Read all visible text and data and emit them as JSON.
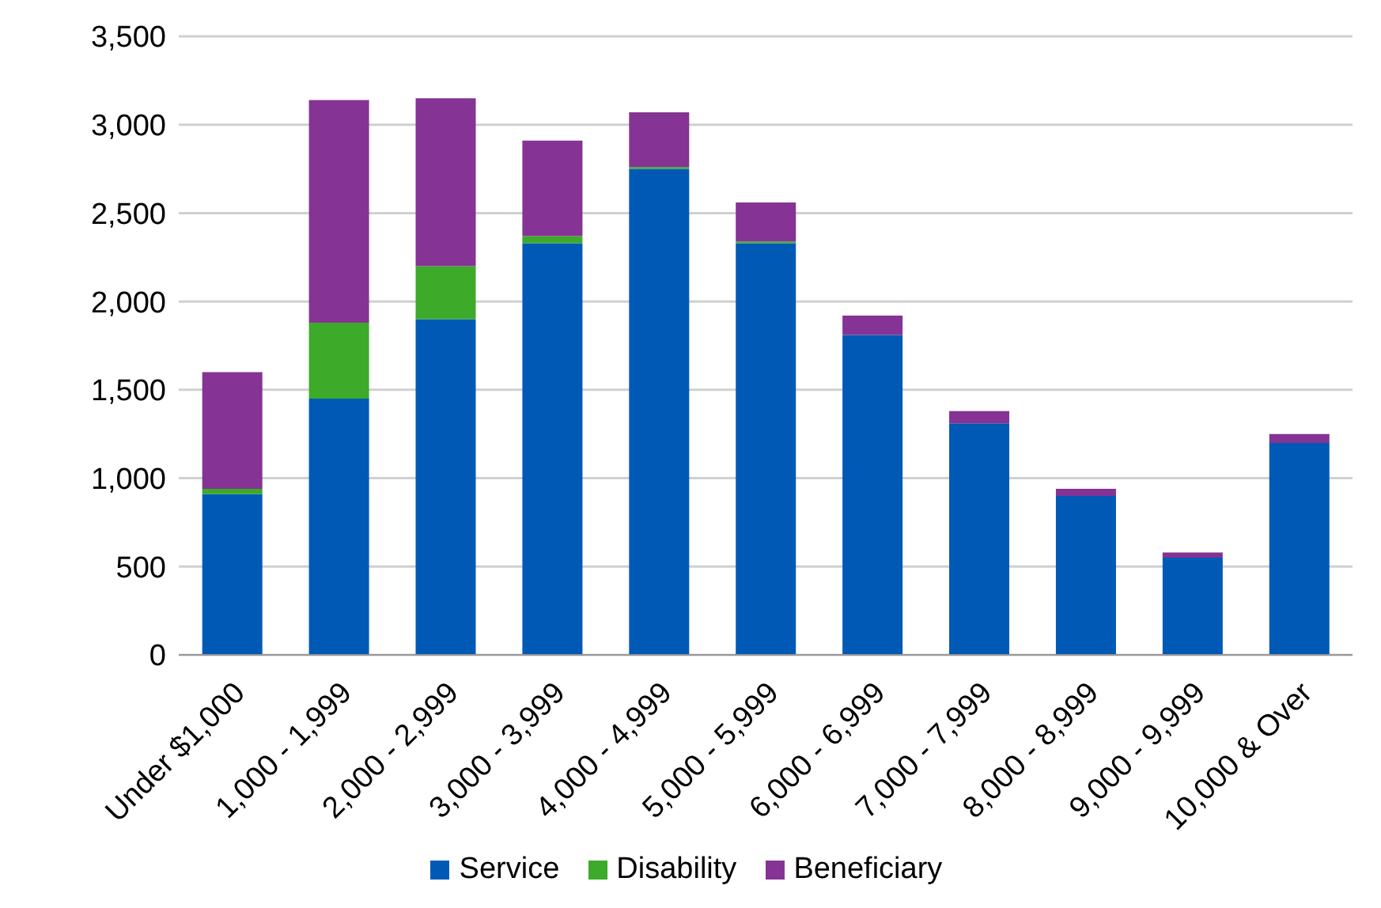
{
  "chart_data": {
    "type": "bar",
    "stacked": true,
    "categories": [
      "Under $1,000",
      "1,000 - 1,999",
      "2,000 - 2,999",
      "3,000 - 3,999",
      "4,000 - 4,999",
      "5,000 - 5,999",
      "6,000 - 6,999",
      "7,000 - 7,999",
      "8,000 - 8,999",
      "9,000 - 9,999",
      "10,000 & Over"
    ],
    "series": [
      {
        "name": "Service",
        "color": "#005ab5",
        "values": [
          910,
          1450,
          1900,
          2330,
          2750,
          2330,
          1810,
          1310,
          900,
          550,
          1200
        ]
      },
      {
        "name": "Disability",
        "color": "#3daa2a",
        "values": [
          30,
          430,
          300,
          40,
          10,
          10,
          0,
          0,
          0,
          0,
          0
        ]
      },
      {
        "name": "Beneficiary",
        "color": "#853394",
        "values": [
          660,
          1260,
          950,
          540,
          310,
          220,
          110,
          70,
          40,
          30,
          50
        ]
      }
    ],
    "ylim": [
      0,
      3500
    ],
    "yticks": [
      0,
      500,
      {
        "value": 1000,
        "label": "1,000"
      },
      {
        "value": 1500,
        "label": "1,500"
      },
      {
        "value": 2000,
        "label": "2,000"
      },
      {
        "value": 2500,
        "label": "2,500"
      },
      {
        "value": 3000,
        "label": "3,000"
      },
      {
        "value": 3500,
        "label": "3,500"
      }
    ],
    "grid": "y",
    "legend": "bottom"
  }
}
